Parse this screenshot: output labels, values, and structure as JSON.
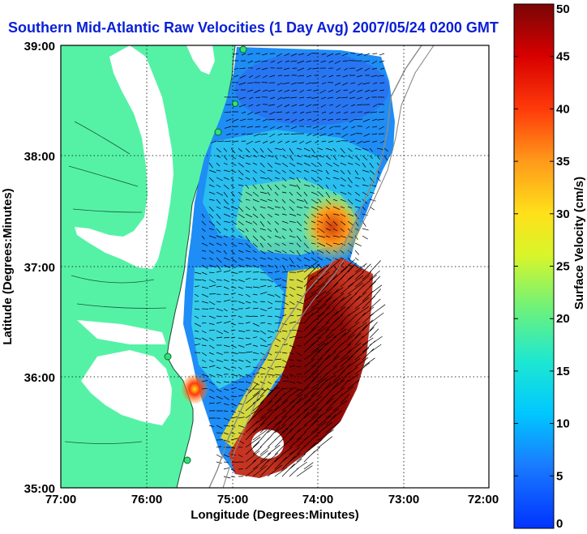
{
  "title": "Southern Mid-Atlantic Raw Velocities (1 Day Avg) 2007/05/24 0200 GMT",
  "x_axis": {
    "label": "Longitude (Degrees:Minutes)",
    "ticks": [
      "77:00",
      "76:00",
      "75:00",
      "74:00",
      "73:00",
      "72:00"
    ]
  },
  "y_axis": {
    "label": "Latitude (Degrees:Minutes)",
    "ticks": [
      "39:00",
      "38:00",
      "37:00",
      "36:00",
      "35:00"
    ]
  },
  "colorbar": {
    "label": "Surface Velocity (cm/s)",
    "ticks": [
      "0",
      "5",
      "10",
      "15",
      "20",
      "25",
      "30",
      "35",
      "40",
      "45",
      "50"
    ],
    "min": 0,
    "max": 50
  },
  "map": {
    "lon_range": [
      -77,
      -72
    ],
    "lat_range": [
      35,
      39
    ],
    "land_color": "#55f2a6",
    "grid": "dotted",
    "station_markers": 5
  }
}
